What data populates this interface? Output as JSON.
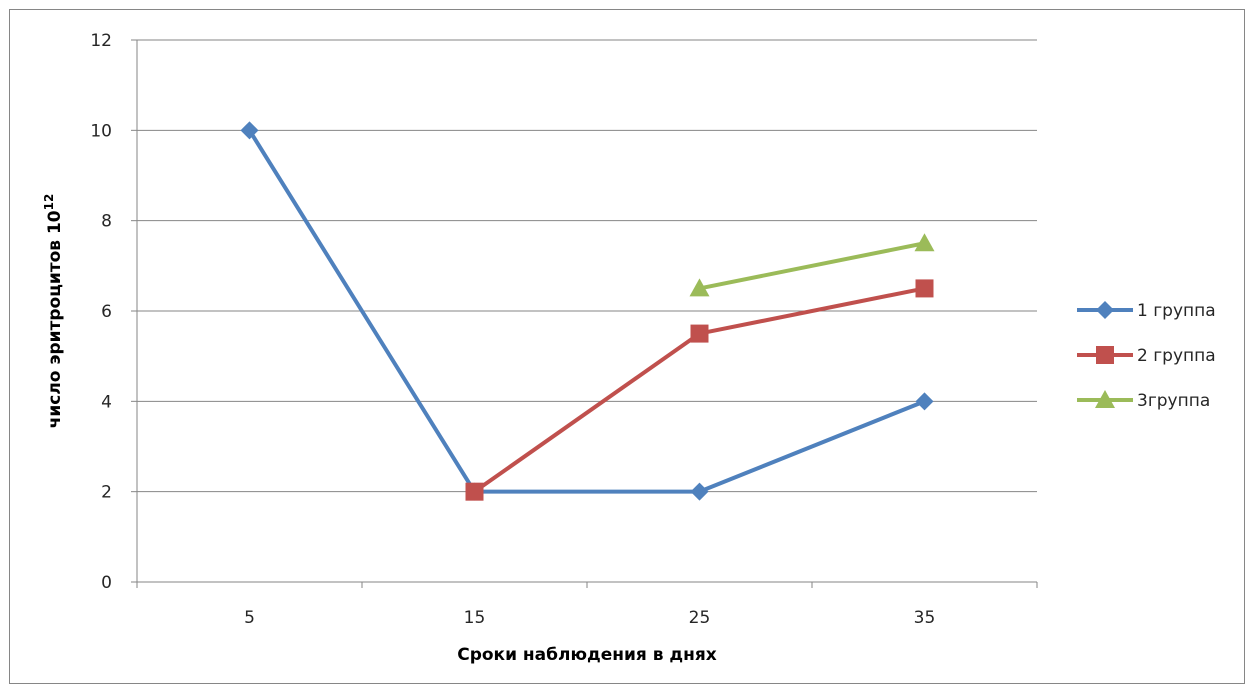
{
  "chart_data": {
    "type": "line",
    "categories": [
      "5",
      "15",
      "25",
      "35"
    ],
    "xlabel": "Сроки наблюдения в днях",
    "ylabel": "число эритроцитов  10",
    "ylabel_superscript": "12",
    "ylim": [
      0,
      12
    ],
    "yticks": [
      "0",
      "2",
      "4",
      "6",
      "8",
      "10",
      "12"
    ],
    "grid": true,
    "legend_position": "right",
    "series": [
      {
        "name": "1 группа",
        "color": "#4f81bd",
        "marker": "diamond",
        "values": [
          10,
          2,
          2,
          4
        ]
      },
      {
        "name": "2 группа",
        "color": "#c0504d",
        "marker": "square",
        "values": [
          null,
          2,
          5.5,
          6.5
        ]
      },
      {
        "name": "3группа",
        "color": "#9bbb59",
        "marker": "triangle",
        "values": [
          null,
          null,
          6.5,
          7.5
        ]
      }
    ]
  }
}
